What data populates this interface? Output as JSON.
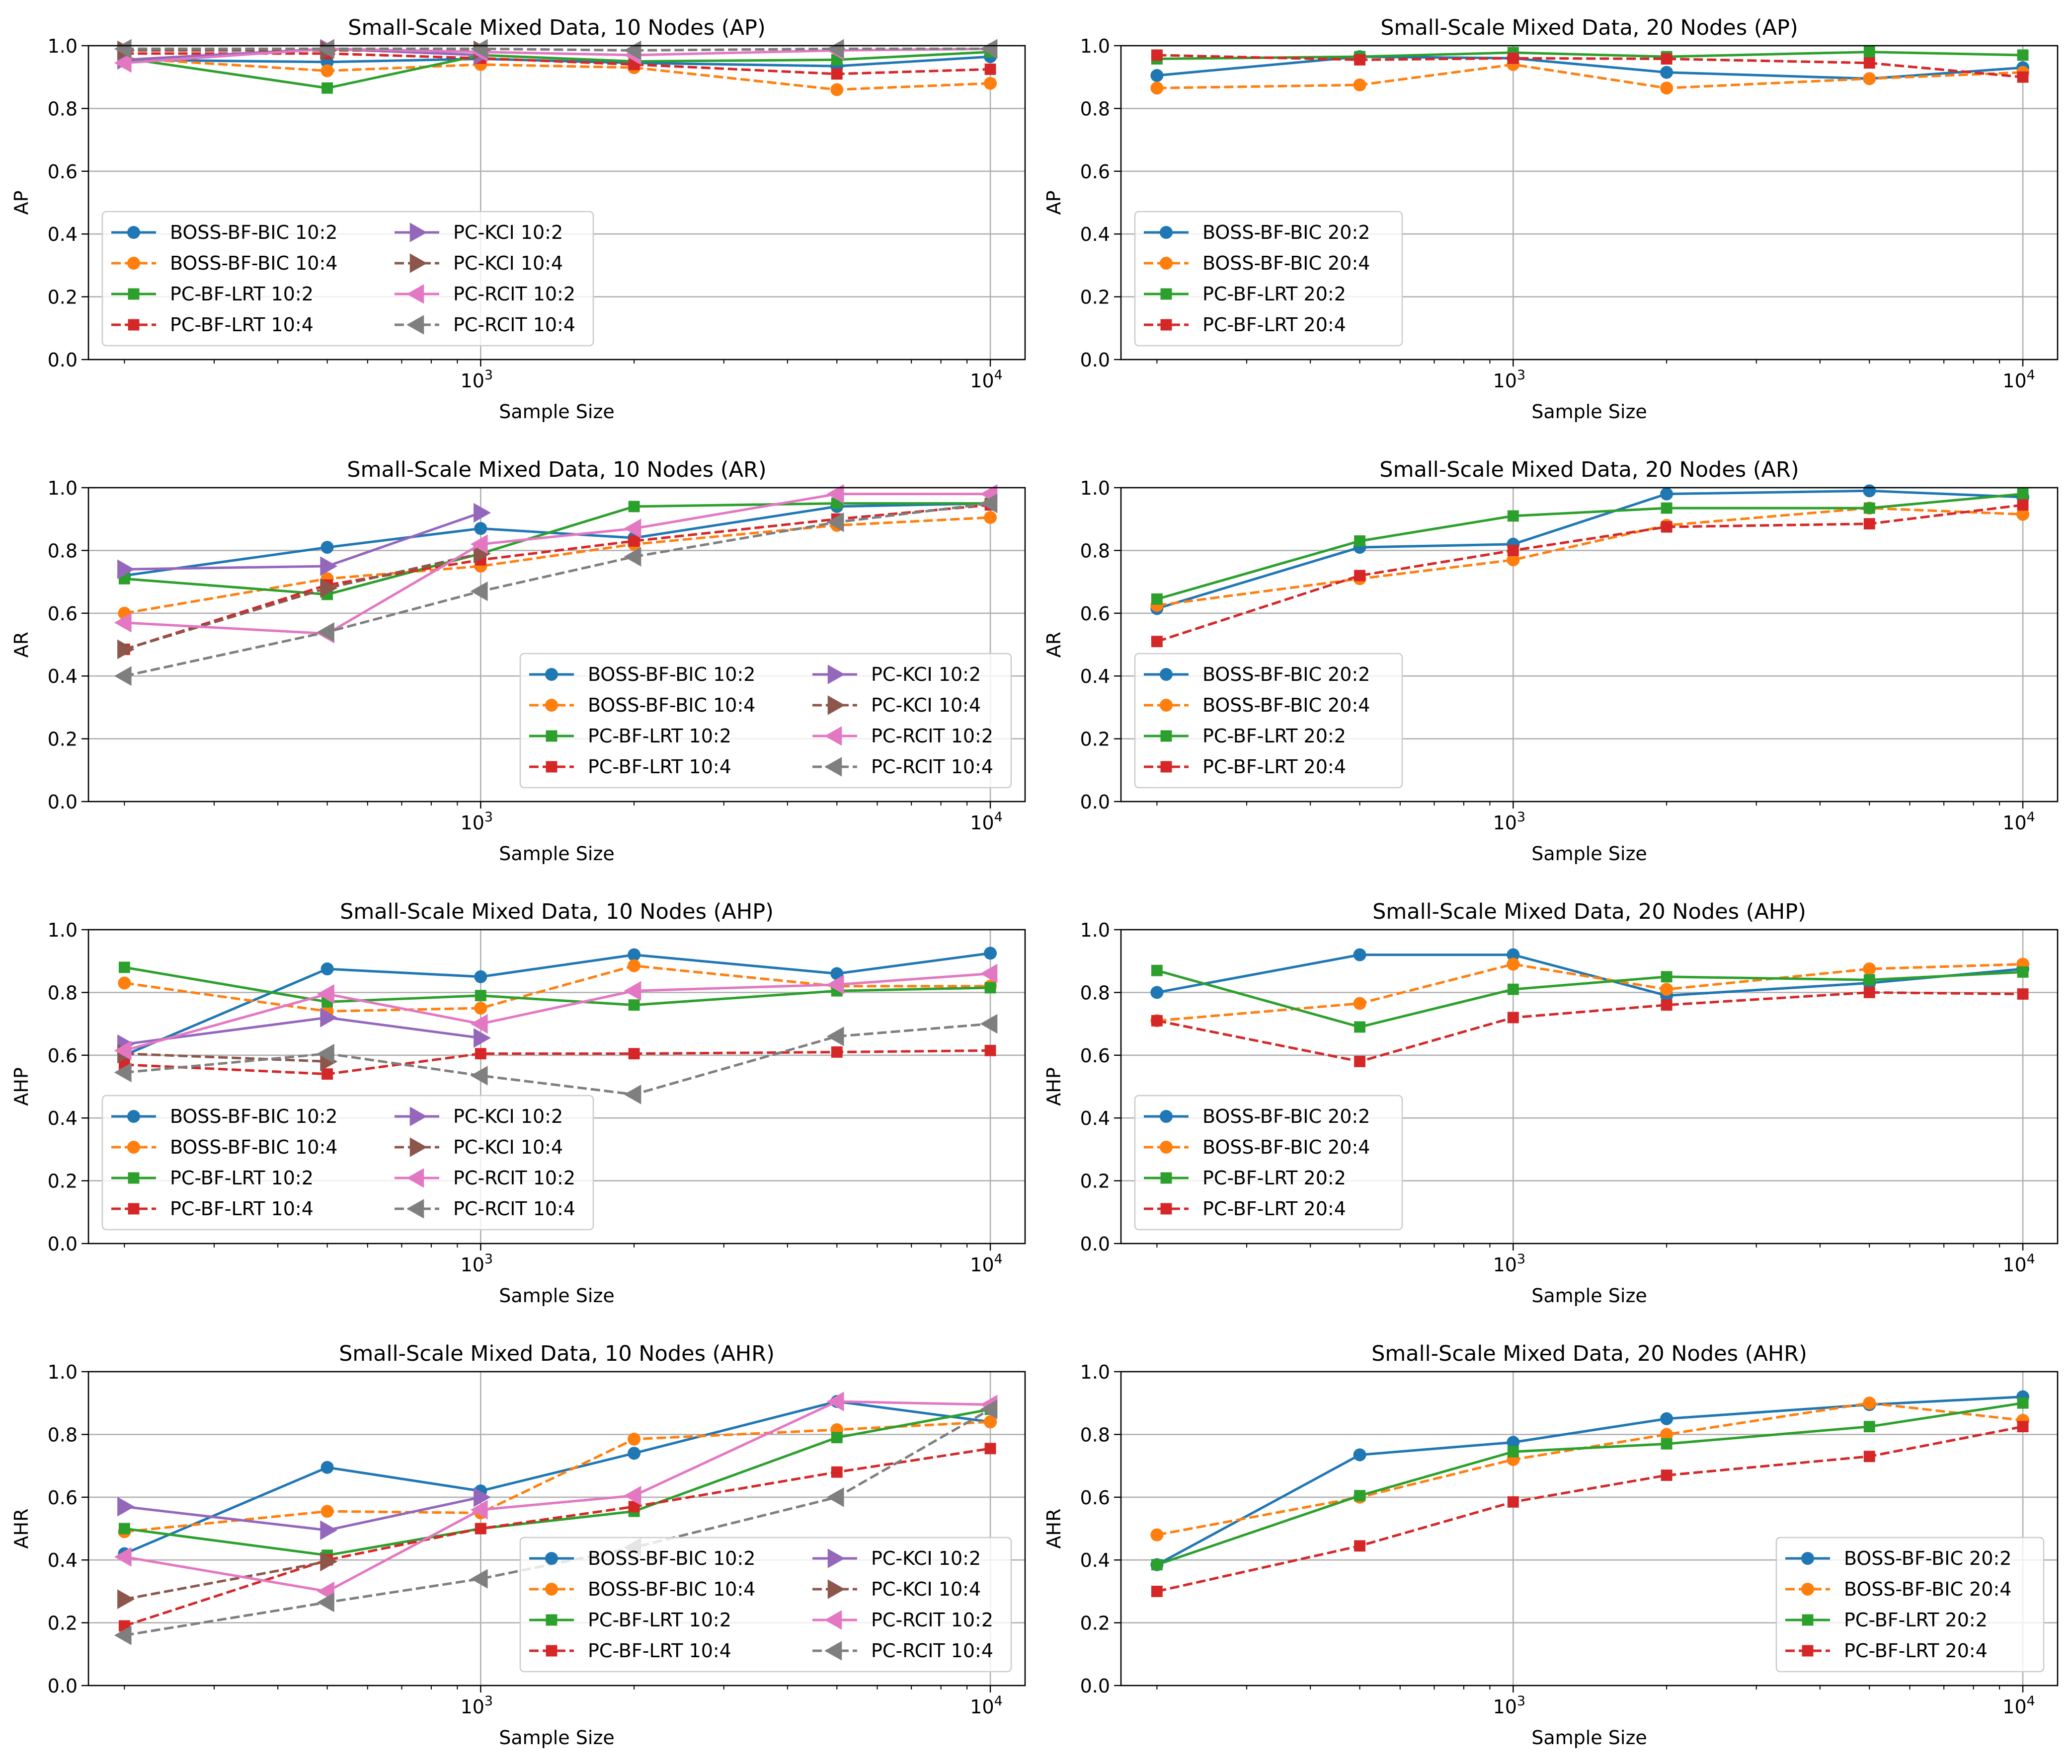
{
  "sample_sizes": [
    200,
    500,
    1000,
    2000,
    5000,
    10000
  ],
  "colors": {
    "boss2": "#1f77b4",
    "boss4": "#ff7f0e",
    "pclrt2": "#2ca02c",
    "pclrt4": "#d62728",
    "kci2": "#9467bd",
    "kci4": "#8c564b",
    "rcit2": "#e377c2",
    "rcit4": "#7f7f7f"
  },
  "chart_data": [
    {
      "type": "line",
      "title": "Small-Scale Mixed Data, 10 Nodes (AP)",
      "xlabel": "Sample Size",
      "ylabel": "AP",
      "xscale": "log",
      "ylim": [
        0,
        1
      ],
      "legend": "lower-left",
      "legend_cols": 2,
      "series": [
        {
          "name": "BOSS-BF-BIC 10:2",
          "key": "boss2",
          "marker": "circle",
          "dash": false,
          "values": [
            0.955,
            0.948,
            0.958,
            0.945,
            0.935,
            0.965
          ]
        },
        {
          "name": "BOSS-BF-BIC 10:4",
          "key": "boss4",
          "marker": "circle",
          "dash": true,
          "values": [
            0.96,
            0.92,
            0.94,
            0.93,
            0.86,
            0.88
          ]
        },
        {
          "name": "PC-BF-LRT 10:2",
          "key": "pclrt2",
          "marker": "square",
          "dash": false,
          "values": [
            0.96,
            0.865,
            0.97,
            0.95,
            0.955,
            0.98
          ]
        },
        {
          "name": "PC-BF-LRT 10:4",
          "key": "pclrt4",
          "marker": "square",
          "dash": true,
          "values": [
            0.975,
            0.975,
            0.96,
            0.94,
            0.91,
            0.925
          ]
        },
        {
          "name": "PC-KCI 10:2",
          "key": "kci2",
          "marker": "tri-right",
          "dash": false,
          "values": [
            0.955,
            0.99,
            0.97,
            null,
            null,
            null
          ]
        },
        {
          "name": "PC-KCI 10:4",
          "key": "kci4",
          "marker": "tri-right",
          "dash": true,
          "values": [
            0.985,
            0.985,
            0.985,
            null,
            null,
            null
          ]
        },
        {
          "name": "PC-RCIT 10:2",
          "key": "rcit2",
          "marker": "tri-left",
          "dash": false,
          "values": [
            0.945,
            0.99,
            0.98,
            0.97,
            0.985,
            0.99
          ]
        },
        {
          "name": "PC-RCIT 10:4",
          "key": "rcit4",
          "marker": "tri-left",
          "dash": true,
          "values": [
            0.99,
            0.99,
            0.99,
            0.985,
            0.99,
            0.99
          ]
        }
      ]
    },
    {
      "type": "line",
      "title": "Small-Scale Mixed Data, 20 Nodes (AP)",
      "xlabel": "Sample Size",
      "ylabel": "AP",
      "xscale": "log",
      "ylim": [
        0,
        1
      ],
      "legend": "lower-left",
      "legend_cols": 1,
      "series": [
        {
          "name": "BOSS-BF-BIC 20:2",
          "key": "boss2",
          "marker": "circle",
          "dash": false,
          "values": [
            0.905,
            0.965,
            0.96,
            0.915,
            0.895,
            0.93
          ]
        },
        {
          "name": "BOSS-BF-BIC 20:4",
          "key": "boss4",
          "marker": "circle",
          "dash": true,
          "values": [
            0.865,
            0.875,
            0.94,
            0.865,
            0.895,
            0.915
          ]
        },
        {
          "name": "PC-BF-LRT 20:2",
          "key": "pclrt2",
          "marker": "square",
          "dash": false,
          "values": [
            0.958,
            0.965,
            0.978,
            0.965,
            0.98,
            0.97
          ]
        },
        {
          "name": "PC-BF-LRT 20:4",
          "key": "pclrt4",
          "marker": "square",
          "dash": true,
          "values": [
            0.97,
            0.955,
            0.96,
            0.958,
            0.945,
            0.9
          ]
        }
      ]
    },
    {
      "type": "line",
      "title": "Small-Scale Mixed Data, 10 Nodes (AR)",
      "xlabel": "Sample Size",
      "ylabel": "AR",
      "xscale": "log",
      "ylim": [
        0,
        1
      ],
      "legend": "lower-right",
      "legend_cols": 2,
      "series": [
        {
          "name": "BOSS-BF-BIC 10:2",
          "key": "boss2",
          "marker": "circle",
          "dash": false,
          "values": [
            0.72,
            0.81,
            0.87,
            0.84,
            0.94,
            0.95
          ]
        },
        {
          "name": "BOSS-BF-BIC 10:4",
          "key": "boss4",
          "marker": "circle",
          "dash": true,
          "values": [
            0.6,
            0.71,
            0.75,
            0.82,
            0.88,
            0.905
          ]
        },
        {
          "name": "PC-BF-LRT 10:2",
          "key": "pclrt2",
          "marker": "square",
          "dash": false,
          "values": [
            0.71,
            0.66,
            0.79,
            0.94,
            0.95,
            0.95
          ]
        },
        {
          "name": "PC-BF-LRT 10:4",
          "key": "pclrt4",
          "marker": "square",
          "dash": true,
          "values": [
            0.485,
            0.69,
            0.77,
            0.83,
            0.9,
            0.945
          ]
        },
        {
          "name": "PC-KCI 10:2",
          "key": "kci2",
          "marker": "tri-right",
          "dash": false,
          "values": [
            0.74,
            0.75,
            0.92,
            null,
            null,
            null
          ]
        },
        {
          "name": "PC-KCI 10:4",
          "key": "kci4",
          "marker": "tri-right",
          "dash": true,
          "values": [
            0.485,
            0.68,
            0.79,
            null,
            null,
            null
          ]
        },
        {
          "name": "PC-RCIT 10:2",
          "key": "rcit2",
          "marker": "tri-left",
          "dash": false,
          "values": [
            0.57,
            0.535,
            0.82,
            0.87,
            0.98,
            0.98
          ]
        },
        {
          "name": "PC-RCIT 10:4",
          "key": "rcit4",
          "marker": "tri-left",
          "dash": true,
          "values": [
            0.4,
            0.54,
            0.67,
            0.78,
            0.89,
            0.95
          ]
        }
      ]
    },
    {
      "type": "line",
      "title": "Small-Scale Mixed Data, 20 Nodes (AR)",
      "xlabel": "Sample Size",
      "ylabel": "AR",
      "xscale": "log",
      "ylim": [
        0,
        1
      ],
      "legend": "lower-left",
      "legend_cols": 1,
      "series": [
        {
          "name": "BOSS-BF-BIC 20:2",
          "key": "boss2",
          "marker": "circle",
          "dash": false,
          "values": [
            0.615,
            0.81,
            0.82,
            0.98,
            0.99,
            0.97
          ]
        },
        {
          "name": "BOSS-BF-BIC 20:4",
          "key": "boss4",
          "marker": "circle",
          "dash": true,
          "values": [
            0.625,
            0.71,
            0.77,
            0.88,
            0.935,
            0.915
          ]
        },
        {
          "name": "PC-BF-LRT 20:2",
          "key": "pclrt2",
          "marker": "square",
          "dash": false,
          "values": [
            0.645,
            0.83,
            0.91,
            0.935,
            0.935,
            0.98
          ]
        },
        {
          "name": "PC-BF-LRT 20:4",
          "key": "pclrt4",
          "marker": "square",
          "dash": true,
          "values": [
            0.51,
            0.72,
            0.8,
            0.875,
            0.885,
            0.945
          ]
        }
      ]
    },
    {
      "type": "line",
      "title": "Small-Scale Mixed Data, 10 Nodes (AHP)",
      "xlabel": "Sample Size",
      "ylabel": "AHP",
      "xscale": "log",
      "ylim": [
        0,
        1
      ],
      "legend": "lower-left",
      "legend_cols": 2,
      "series": [
        {
          "name": "BOSS-BF-BIC 10:2",
          "key": "boss2",
          "marker": "circle",
          "dash": false,
          "values": [
            0.6,
            0.875,
            0.85,
            0.92,
            0.86,
            0.925
          ]
        },
        {
          "name": "BOSS-BF-BIC 10:4",
          "key": "boss4",
          "marker": "circle",
          "dash": true,
          "values": [
            0.83,
            0.74,
            0.75,
            0.885,
            0.82,
            0.82
          ]
        },
        {
          "name": "PC-BF-LRT 10:2",
          "key": "pclrt2",
          "marker": "square",
          "dash": false,
          "values": [
            0.88,
            0.77,
            0.79,
            0.76,
            0.805,
            0.815
          ]
        },
        {
          "name": "PC-BF-LRT 10:4",
          "key": "pclrt4",
          "marker": "square",
          "dash": true,
          "values": [
            0.57,
            0.54,
            0.605,
            0.605,
            0.61,
            0.615
          ]
        },
        {
          "name": "PC-KCI 10:2",
          "key": "kci2",
          "marker": "tri-right",
          "dash": false,
          "values": [
            0.635,
            0.72,
            0.655,
            null,
            null,
            null
          ]
        },
        {
          "name": "PC-KCI 10:4",
          "key": "kci4",
          "marker": "tri-right",
          "dash": true,
          "values": [
            0.605,
            0.58,
            null,
            null,
            null,
            null
          ]
        },
        {
          "name": "PC-RCIT 10:2",
          "key": "rcit2",
          "marker": "tri-left",
          "dash": false,
          "values": [
            0.615,
            0.795,
            0.7,
            0.805,
            0.825,
            0.86
          ]
        },
        {
          "name": "PC-RCIT 10:4",
          "key": "rcit4",
          "marker": "tri-left",
          "dash": true,
          "values": [
            0.545,
            0.605,
            0.535,
            0.475,
            0.66,
            0.7
          ]
        }
      ]
    },
    {
      "type": "line",
      "title": "Small-Scale Mixed Data, 20 Nodes (AHP)",
      "xlabel": "Sample Size",
      "ylabel": "AHP",
      "xscale": "log",
      "ylim": [
        0,
        1
      ],
      "legend": "lower-left",
      "legend_cols": 1,
      "series": [
        {
          "name": "BOSS-BF-BIC 20:2",
          "key": "boss2",
          "marker": "circle",
          "dash": false,
          "values": [
            0.8,
            0.92,
            0.92,
            0.79,
            0.83,
            0.875
          ]
        },
        {
          "name": "BOSS-BF-BIC 20:4",
          "key": "boss4",
          "marker": "circle",
          "dash": true,
          "values": [
            0.71,
            0.765,
            0.89,
            0.81,
            0.875,
            0.89
          ]
        },
        {
          "name": "PC-BF-LRT 20:2",
          "key": "pclrt2",
          "marker": "square",
          "dash": false,
          "values": [
            0.87,
            0.69,
            0.81,
            0.85,
            0.84,
            0.865
          ]
        },
        {
          "name": "PC-BF-LRT 20:4",
          "key": "pclrt4",
          "marker": "square",
          "dash": true,
          "values": [
            0.71,
            0.58,
            0.72,
            0.76,
            0.8,
            0.795
          ]
        }
      ]
    },
    {
      "type": "line",
      "title": "Small-Scale Mixed Data, 10 Nodes (AHR)",
      "xlabel": "Sample Size",
      "ylabel": "AHR",
      "xscale": "log",
      "ylim": [
        0,
        1
      ],
      "legend": "lower-right",
      "legend_cols": 2,
      "series": [
        {
          "name": "BOSS-BF-BIC 10:2",
          "key": "boss2",
          "marker": "circle",
          "dash": false,
          "values": [
            0.42,
            0.695,
            0.62,
            0.74,
            0.905,
            0.84
          ]
        },
        {
          "name": "BOSS-BF-BIC 10:4",
          "key": "boss4",
          "marker": "circle",
          "dash": true,
          "values": [
            0.49,
            0.555,
            0.55,
            0.785,
            0.815,
            0.84
          ]
        },
        {
          "name": "PC-BF-LRT 10:2",
          "key": "pclrt2",
          "marker": "square",
          "dash": false,
          "values": [
            0.5,
            0.415,
            0.5,
            0.555,
            0.79,
            0.88
          ]
        },
        {
          "name": "PC-BF-LRT 10:4",
          "key": "pclrt4",
          "marker": "square",
          "dash": true,
          "values": [
            0.19,
            0.4,
            0.5,
            0.57,
            0.68,
            0.755
          ]
        },
        {
          "name": "PC-KCI 10:2",
          "key": "kci2",
          "marker": "tri-right",
          "dash": false,
          "values": [
            0.57,
            0.495,
            0.6,
            null,
            null,
            null
          ]
        },
        {
          "name": "PC-KCI 10:4",
          "key": "kci4",
          "marker": "tri-right",
          "dash": true,
          "values": [
            0.275,
            0.395,
            null,
            null,
            null,
            null
          ]
        },
        {
          "name": "PC-RCIT 10:2",
          "key": "rcit2",
          "marker": "tri-left",
          "dash": false,
          "values": [
            0.41,
            0.3,
            0.56,
            0.605,
            0.905,
            0.895
          ]
        },
        {
          "name": "PC-RCIT 10:4",
          "key": "rcit4",
          "marker": "tri-left",
          "dash": true,
          "values": [
            0.16,
            0.265,
            0.34,
            0.44,
            0.6,
            0.88
          ]
        }
      ]
    },
    {
      "type": "line",
      "title": "Small-Scale Mixed Data, 20 Nodes (AHR)",
      "xlabel": "Sample Size",
      "ylabel": "AHR",
      "xscale": "log",
      "ylim": [
        0,
        1
      ],
      "legend": "lower-right",
      "legend_cols": 1,
      "series": [
        {
          "name": "BOSS-BF-BIC 20:2",
          "key": "boss2",
          "marker": "circle",
          "dash": false,
          "values": [
            0.385,
            0.735,
            0.775,
            0.85,
            0.895,
            0.92
          ]
        },
        {
          "name": "BOSS-BF-BIC 20:4",
          "key": "boss4",
          "marker": "circle",
          "dash": true,
          "values": [
            0.48,
            0.6,
            0.72,
            0.8,
            0.9,
            0.845
          ]
        },
        {
          "name": "PC-BF-LRT 20:2",
          "key": "pclrt2",
          "marker": "square",
          "dash": false,
          "values": [
            0.385,
            0.605,
            0.745,
            0.77,
            0.825,
            0.9
          ]
        },
        {
          "name": "PC-BF-LRT 20:4",
          "key": "pclrt4",
          "marker": "square",
          "dash": true,
          "values": [
            0.3,
            0.445,
            0.585,
            0.67,
            0.73,
            0.825
          ]
        }
      ]
    }
  ]
}
